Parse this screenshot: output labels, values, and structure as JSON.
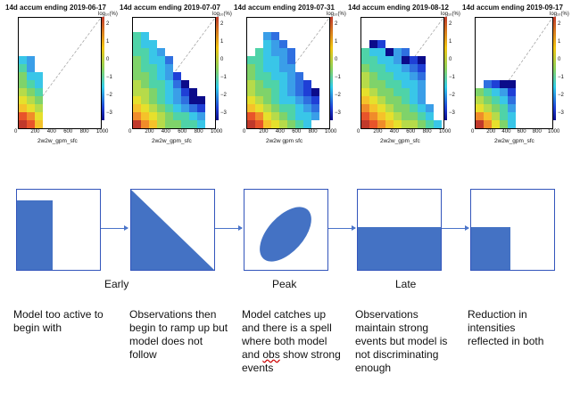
{
  "panels": [
    {
      "title": "14d accum ending 2019-06-17",
      "xlabel": "2w2w_gpm_sfc"
    },
    {
      "title": "14d accum ending 2019-07-07",
      "xlabel": "2w2w_gpm_sfc"
    },
    {
      "title": "14d accum ending 2019-07-31",
      "xlabel": "2w2w gpm sfc"
    },
    {
      "title": "14d accum ending 2019-08-12",
      "xlabel": "2w2w_gpm_sfc"
    },
    {
      "title": "14d accum ending 2019-09-17",
      "xlabel": "2w2w_gpm_sfc"
    }
  ],
  "colorbar": {
    "unit": "log₁₀(%)",
    "ticks": [
      "2",
      "1",
      "0",
      "−1",
      "−2",
      "−3"
    ]
  },
  "x_ticks": [
    "0",
    "200",
    "400",
    "600",
    "800",
    "1000"
  ],
  "phases": {
    "early": "Early",
    "peak": "Peak",
    "late": "Late"
  },
  "descriptions": [
    "Model too active to begin with",
    "Observations then begin to ramp up but model does not follow",
    "Model catches up and there is a spell where both model and obs show strong events",
    "Observations maintain strong events but model is not discriminating enough",
    "Reduction in intensities reflected in both"
  ],
  "colors": {
    "shape_fill": "#4472c4",
    "box_border": "#3355bb",
    "arrow": "#4a74c9"
  }
}
